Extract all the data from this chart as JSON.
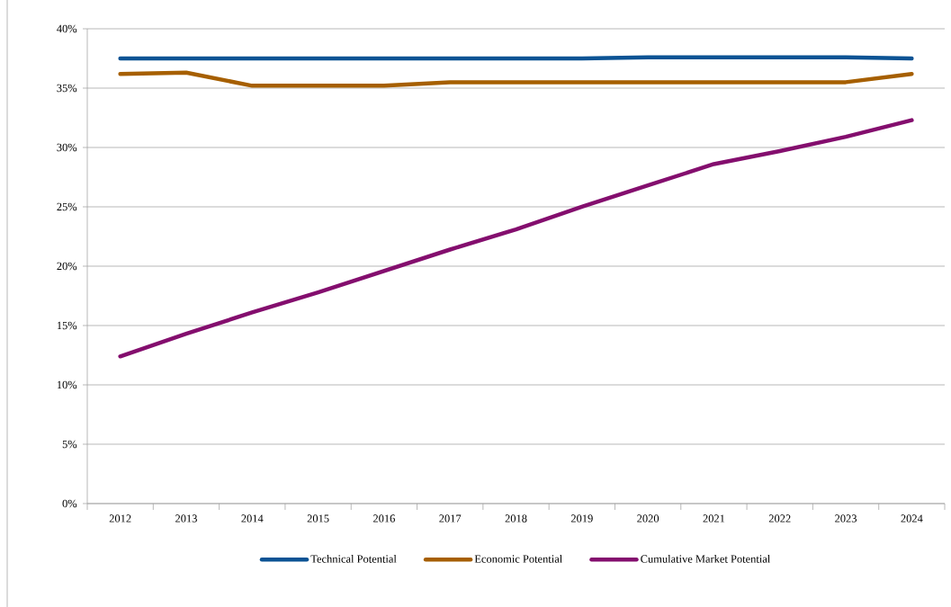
{
  "chart_data": {
    "type": "line",
    "categories": [
      "2012",
      "2013",
      "2014",
      "2015",
      "2016",
      "2017",
      "2018",
      "2019",
      "2020",
      "2021",
      "2022",
      "2023",
      "2024"
    ],
    "series": [
      {
        "name": "Technical Potential",
        "color": "#0b5394",
        "values": [
          37.5,
          37.5,
          37.5,
          37.5,
          37.5,
          37.5,
          37.5,
          37.5,
          37.6,
          37.6,
          37.6,
          37.6,
          37.5
        ]
      },
      {
        "name": "Economic Potential",
        "color": "#a65f00",
        "values": [
          36.2,
          36.3,
          35.2,
          35.2,
          35.2,
          35.5,
          35.5,
          35.5,
          35.5,
          35.5,
          35.5,
          35.5,
          36.2
        ]
      },
      {
        "name": "Cumulative Market Potential",
        "color": "#840e6e",
        "values": [
          12.4,
          14.3,
          16.1,
          17.8,
          19.6,
          21.4,
          23.1,
          25.0,
          26.8,
          28.6,
          29.7,
          30.9,
          32.3
        ]
      }
    ],
    "ylim": [
      0,
      40
    ],
    "yticks": [
      {
        "value": 0,
        "label": "0%"
      },
      {
        "value": 5,
        "label": "5%"
      },
      {
        "value": 10,
        "label": "10%"
      },
      {
        "value": 15,
        "label": "15%"
      },
      {
        "value": 20,
        "label": "20%"
      },
      {
        "value": 25,
        "label": "25%"
      },
      {
        "value": 30,
        "label": "30%"
      },
      {
        "value": 35,
        "label": "35%"
      },
      {
        "value": 40,
        "label": "40%"
      }
    ],
    "grid": "y",
    "legend": "bottom",
    "marker": "none",
    "line_style": "solid"
  }
}
